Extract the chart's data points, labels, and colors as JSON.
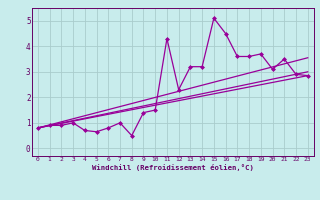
{
  "xlabel": "Windchill (Refroidissement éolien,°C)",
  "bg_color": "#c8ecec",
  "line_color": "#990099",
  "grid_color": "#aacccc",
  "axis_color": "#660066",
  "text_color": "#660066",
  "xlim": [
    -0.5,
    23.5
  ],
  "ylim": [
    -0.3,
    5.5
  ],
  "xticks": [
    0,
    1,
    2,
    3,
    4,
    5,
    6,
    7,
    8,
    9,
    10,
    11,
    12,
    13,
    14,
    15,
    16,
    17,
    18,
    19,
    20,
    21,
    22,
    23
  ],
  "yticks": [
    0,
    1,
    2,
    3,
    4,
    5
  ],
  "data_x": [
    0,
    1,
    2,
    3,
    4,
    5,
    6,
    7,
    8,
    9,
    10,
    11,
    12,
    13,
    14,
    15,
    16,
    17,
    18,
    19,
    20,
    21,
    22,
    23
  ],
  "data_y": [
    0.8,
    0.9,
    0.9,
    1.0,
    0.7,
    0.65,
    0.8,
    1.0,
    0.5,
    1.4,
    1.5,
    4.3,
    2.3,
    3.2,
    3.2,
    5.1,
    4.5,
    3.6,
    3.6,
    3.7,
    3.1,
    3.5,
    2.9,
    2.85
  ],
  "trend1_x": [
    0,
    23
  ],
  "trend1_y": [
    0.8,
    3.55
  ],
  "trend2_x": [
    0,
    23
  ],
  "trend2_y": [
    0.8,
    3.0
  ],
  "trend3_x": [
    0,
    23
  ],
  "trend3_y": [
    0.8,
    2.85
  ]
}
